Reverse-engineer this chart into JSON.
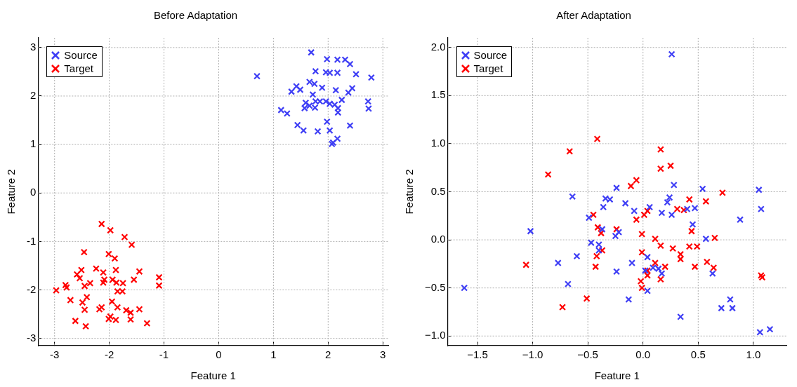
{
  "chart_data": [
    {
      "type": "scatter",
      "title": "Before Adaptation",
      "xlabel": "Feature 1",
      "ylabel": "Feature 2",
      "xlim": [
        -3.3,
        3.1
      ],
      "ylim": [
        -3.15,
        3.2
      ],
      "xticks": [
        -3,
        -2,
        -1,
        0,
        1,
        2,
        3
      ],
      "yticks": [
        -3,
        -2,
        -1,
        0,
        1,
        2,
        3
      ],
      "grid": true,
      "legend": "top left",
      "marker": "cross",
      "series": [
        {
          "name": "Source",
          "color": "#3f3ff5",
          "x": [
            0.7,
            1.69,
            1.98,
            2.17,
            2.31,
            2.4,
            1.77,
            1.96,
            2.03,
            2.17,
            2.51,
            2.79,
            1.66,
            1.75,
            1.42,
            1.33,
            1.49,
            1.89,
            1.72,
            2.14,
            2.44,
            2.37,
            2.25,
            1.59,
            1.66,
            1.77,
            1.85,
            1.96,
            2.03,
            2.12,
            1.57,
            1.76,
            2.18,
            2.18,
            2.73,
            2.74,
            1.14,
            1.25,
            1.44,
            1.55,
            1.81,
            1.98,
            2.03,
            2.4,
            2.17,
            2.09,
            2.07
          ],
          "values": [
            2.41,
            2.9,
            2.76,
            2.75,
            2.75,
            2.66,
            2.51,
            2.49,
            2.48,
            2.48,
            2.45,
            2.38,
            2.29,
            2.25,
            2.2,
            2.09,
            2.13,
            2.17,
            2.03,
            2.12,
            2.16,
            2.07,
            1.92,
            1.86,
            1.8,
            1.89,
            1.89,
            1.89,
            1.84,
            1.82,
            1.75,
            1.76,
            1.75,
            1.66,
            1.89,
            1.74,
            1.71,
            1.64,
            1.4,
            1.29,
            1.27,
            1.47,
            1.29,
            1.39,
            1.12,
            1.04,
            1.01
          ]
        },
        {
          "name": "Target",
          "color": "#ff0000",
          "x": [
            -2.14,
            -1.98,
            -1.72,
            -1.59,
            -2.46,
            -2.01,
            -1.9,
            -2.24,
            -2.51,
            -2.11,
            -1.88,
            -1.45,
            -2.59,
            -2.54,
            -1.09,
            -1.55,
            -2.09,
            -2.11,
            -1.94,
            -1.87,
            -1.75,
            -2.35,
            -2.45,
            -2.8,
            -2.78,
            -1.09,
            -2.97,
            -1.85,
            -1.76,
            -2.41,
            -2.71,
            -2.49,
            -1.95,
            -2.45,
            -2.18,
            -2.14,
            -1.85,
            -1.69,
            -1.61,
            -1.45,
            -1.98,
            -2.01,
            -1.88,
            -1.61,
            -2.62,
            -1.31,
            -2.43
          ],
          "values": [
            -0.64,
            -0.77,
            -0.91,
            -1.07,
            -1.22,
            -1.26,
            -1.35,
            -1.56,
            -1.59,
            -1.64,
            -1.59,
            -1.62,
            -1.68,
            -1.76,
            -1.74,
            -1.79,
            -1.79,
            -1.85,
            -1.79,
            -1.85,
            -1.86,
            -1.86,
            -1.92,
            -1.9,
            -1.95,
            -1.91,
            -2.01,
            -2.03,
            -2.03,
            -2.15,
            -2.21,
            -2.26,
            -2.24,
            -2.41,
            -2.4,
            -2.36,
            -2.36,
            -2.42,
            -2.47,
            -2.4,
            -2.55,
            -2.6,
            -2.62,
            -2.61,
            -2.64,
            -2.69,
            -2.75
          ]
        }
      ]
    },
    {
      "type": "scatter",
      "title": "After Adaptation",
      "xlabel": "Feature 1",
      "ylabel": "Feature 2",
      "xlim": [
        -1.77,
        1.3
      ],
      "ylim": [
        -1.1,
        2.1
      ],
      "xticks": [
        {
          "value": -1.5,
          "label": "−1.5"
        },
        {
          "value": -1,
          "label": "−1.0"
        },
        {
          "value": -0.5,
          "label": "−0.5"
        },
        {
          "value": 0,
          "label": "0.0"
        },
        {
          "value": 0.5,
          "label": "0.5"
        },
        {
          "value": 1,
          "label": "1.0"
        }
      ],
      "yticks": [
        {
          "value": -1,
          "label": "−1.0"
        },
        {
          "value": -0.5,
          "label": "−0.5"
        },
        {
          "value": 0,
          "label": "0.0"
        },
        {
          "value": 0.5,
          "label": "0.5"
        },
        {
          "value": 1,
          "label": "1.0"
        },
        {
          "value": 1.5,
          "label": "1.5"
        },
        {
          "value": 2,
          "label": "2.0"
        }
      ],
      "grid": true,
      "legend": "top left",
      "marker": "cross",
      "series": [
        {
          "name": "Source",
          "color": "#3f3ff5",
          "x": [
            -0.24,
            -0.64,
            -0.34,
            -0.3,
            -0.36,
            -0.49,
            -0.37,
            -0.25,
            -1.02,
            -0.47,
            -0.4,
            -0.4,
            -0.6,
            -0.77,
            -0.24,
            -0.68,
            -1.62,
            0.26,
            0.28,
            0.54,
            1.05,
            -0.16,
            0.24,
            0.22,
            -0.08,
            0.06,
            0.17,
            0.26,
            0.4,
            0.47,
            1.07,
            0.88,
            -0.22,
            0.45,
            0.57,
            0.04,
            -0.1,
            0.02,
            0.09,
            0.14,
            0.17,
            0.63,
            0.04,
            -0.13,
            0.79,
            0.71,
            0.81,
            0.34,
            1.06,
            1.15
          ],
          "values": [
            0.54,
            0.45,
            0.43,
            0.42,
            0.34,
            0.23,
            0.11,
            0.04,
            0.09,
            -0.03,
            -0.05,
            -0.11,
            -0.17,
            -0.24,
            -0.33,
            -0.46,
            -0.5,
            1.93,
            0.57,
            0.53,
            0.52,
            0.38,
            0.44,
            0.39,
            0.3,
            0.34,
            0.28,
            0.26,
            0.32,
            0.33,
            0.32,
            0.21,
            0.08,
            0.16,
            0.01,
            -0.18,
            -0.24,
            -0.32,
            -0.29,
            -0.3,
            -0.35,
            -0.35,
            -0.53,
            -0.62,
            -0.62,
            -0.71,
            -0.71,
            -0.8,
            -0.96,
            -0.93
          ]
        },
        {
          "name": "Target",
          "color": "#ff0000",
          "x": [
            -0.415,
            -0.665,
            -0.86,
            -0.45,
            -0.41,
            -0.38,
            -0.24,
            -0.37,
            -0.42,
            -0.43,
            -1.06,
            -0.51,
            -0.73,
            0.16,
            0.16,
            0.25,
            -0.06,
            -0.11,
            0.72,
            0.42,
            0.57,
            0.04,
            0.01,
            -0.06,
            0.31,
            0.37,
            0.44,
            -0.01,
            0.11,
            0.16,
            0.65,
            0.27,
            0.42,
            0.49,
            -0.01,
            0.34,
            0.34,
            0.11,
            0.04,
            0.2,
            0.04,
            0.16,
            0.47,
            0.58,
            0.64,
            1.07,
            1.08,
            -0.02,
            -0.01
          ],
          "values": [
            1.05,
            0.92,
            0.68,
            0.26,
            0.13,
            0.07,
            0.11,
            -0.11,
            -0.17,
            -0.28,
            -0.26,
            -0.61,
            -0.7,
            0.94,
            0.74,
            0.77,
            0.62,
            0.56,
            0.49,
            0.42,
            0.4,
            0.3,
            0.26,
            0.21,
            0.32,
            0.31,
            0.09,
            0.06,
            0.01,
            -0.06,
            0.02,
            -0.09,
            -0.07,
            -0.07,
            -0.13,
            -0.15,
            -0.2,
            -0.24,
            -0.32,
            -0.28,
            -0.37,
            -0.41,
            -0.28,
            -0.23,
            -0.29,
            -0.37,
            -0.39,
            -0.43,
            -0.5
          ]
        }
      ]
    }
  ]
}
